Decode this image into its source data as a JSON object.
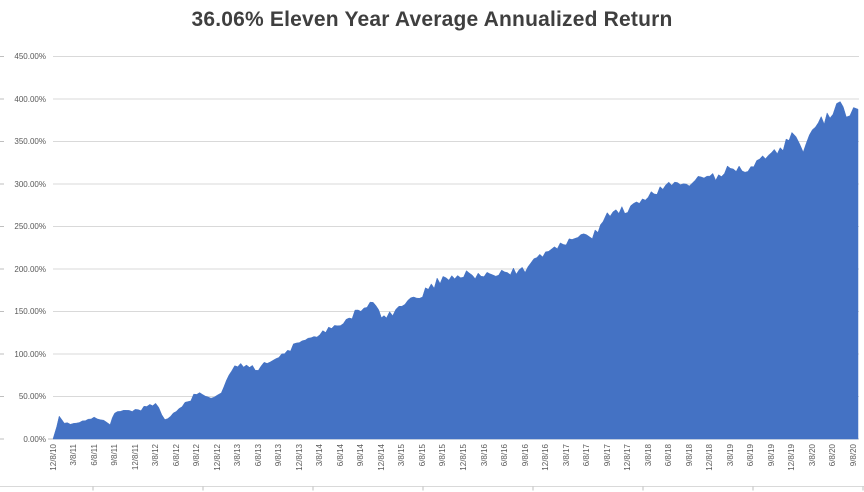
{
  "title": "36.06% Eleven Year Average Annualized Return",
  "colors": {
    "area_fill": "#4472C4",
    "gridline": "#D9D9D9",
    "axis_line": "#BFBFBF",
    "tick_label": "#595959",
    "title_text": "#3F3F3F",
    "background": "#FFFFFF"
  },
  "chart_data": {
    "type": "area",
    "title": "36.06% Eleven Year Average Annualized Return",
    "unit": "percent cumulative return",
    "x": [
      "12/8/10",
      "3/8/11",
      "6/8/11",
      "9/8/11",
      "12/8/11",
      "3/8/12",
      "6/8/12",
      "9/8/12",
      "12/8/12",
      "3/8/13",
      "6/8/13",
      "9/8/13",
      "12/8/13",
      "3/8/14",
      "6/8/14",
      "9/8/14",
      "12/8/14",
      "3/8/15",
      "6/8/15",
      "9/8/15",
      "12/8/15",
      "3/8/16",
      "6/8/16",
      "9/8/16",
      "12/8/16",
      "3/8/17",
      "6/8/17",
      "9/8/17",
      "12/8/17",
      "3/8/18",
      "6/8/18",
      "9/8/18",
      "12/8/18",
      "3/8/19",
      "6/8/19",
      "9/8/19",
      "12/8/19",
      "3/8/20",
      "6/8/20",
      "9/8/20"
    ],
    "values": [
      0,
      18,
      26,
      33,
      34,
      42,
      32,
      55,
      52,
      87,
      86,
      95,
      115,
      123,
      135,
      153,
      146,
      157,
      171,
      190,
      194,
      192,
      197,
      200,
      220,
      233,
      239,
      265,
      272,
      283,
      300,
      305,
      308,
      319,
      323,
      333,
      357,
      362,
      384,
      390
    ],
    "shape_points": [
      [
        0.18,
        16
      ],
      [
        0.3,
        26
      ],
      [
        0.55,
        19
      ],
      [
        2.78,
        18
      ],
      [
        5.45,
        22
      ],
      [
        7.7,
        48
      ],
      [
        8.2,
        56
      ],
      [
        8.7,
        80
      ],
      [
        15.6,
        160
      ],
      [
        16.25,
        143
      ],
      [
        26.55,
        240
      ],
      [
        26.8,
        262
      ],
      [
        36.2,
        364
      ],
      [
        36.55,
        345
      ],
      [
        38.35,
        395
      ],
      [
        38.65,
        379
      ]
    ],
    "ylim": [
      0,
      450
    ],
    "y_tick_labels": [
      "0.00%",
      "50.00%",
      "100.00%",
      "150.00%",
      "200.00%",
      "250.00%",
      "300.00%",
      "350.00%",
      "400.00%",
      "450.00%"
    ],
    "grid": true,
    "legend": false,
    "x_tick_rotation": -90
  }
}
